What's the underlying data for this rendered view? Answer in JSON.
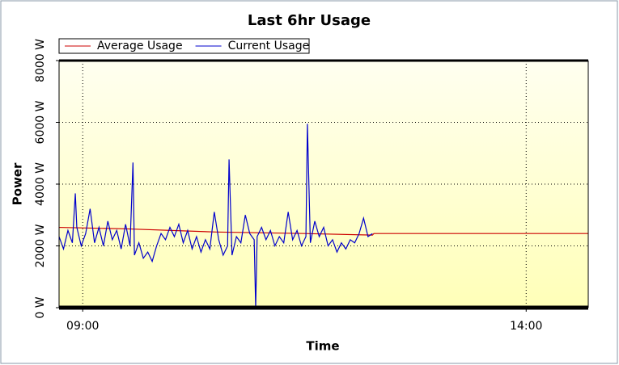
{
  "chart_data": {
    "type": "line",
    "title": "Last 6hr Usage",
    "x_label": "Time",
    "y_label": "Power",
    "xlim": [
      "08:44",
      "14:42"
    ],
    "xticks": [
      "09:00",
      "14:00"
    ],
    "ylim": [
      0,
      8000
    ],
    "yticks": [
      {
        "value": 0,
        "label": "0 W"
      },
      {
        "value": 2000,
        "label": "2000 W"
      },
      {
        "value": 4000,
        "label": "4000 W"
      },
      {
        "value": 6000,
        "label": "6000 W"
      },
      {
        "value": 8000,
        "label": "8000 W"
      }
    ],
    "grid": true,
    "legend": "top-left",
    "series": [
      {
        "name": "Average Usage",
        "color": "#cc0000",
        "x": [
          "08:44",
          "09:30",
          "10:30",
          "11:30",
          "12:16",
          "12:17",
          "14:42"
        ],
        "values": [
          2600,
          2550,
          2450,
          2400,
          2350,
          2400,
          2400
        ]
      },
      {
        "name": "Current Usage",
        "color": "#0000cc",
        "x": [
          "08:44",
          "08:47",
          "08:50",
          "08:53",
          "08:55",
          "08:56",
          "08:59",
          "09:02",
          "09:05",
          "09:08",
          "09:11",
          "09:14",
          "09:17",
          "09:20",
          "09:23",
          "09:26",
          "09:29",
          "09:32",
          "09:34",
          "09:35",
          "09:38",
          "09:41",
          "09:44",
          "09:47",
          "09:50",
          "09:53",
          "09:56",
          "09:59",
          "10:02",
          "10:05",
          "10:08",
          "10:11",
          "10:14",
          "10:17",
          "10:20",
          "10:23",
          "10:26",
          "10:29",
          "10:32",
          "10:35",
          "10:38",
          "10:39",
          "10:41",
          "10:44",
          "10:47",
          "10:50",
          "10:53",
          "10:56",
          "10:57",
          "10:58",
          "11:01",
          "11:04",
          "11:07",
          "11:10",
          "11:13",
          "11:16",
          "11:19",
          "11:22",
          "11:25",
          "11:28",
          "11:31",
          "11:32",
          "11:34",
          "11:37",
          "11:40",
          "11:43",
          "11:46",
          "11:49",
          "11:52",
          "11:55",
          "11:58",
          "12:01",
          "12:04",
          "12:07",
          "12:10",
          "12:13",
          "12:16"
        ],
        "values": [
          2300,
          1900,
          2500,
          2100,
          3700,
          2600,
          2000,
          2400,
          3200,
          2100,
          2600,
          2000,
          2800,
          2200,
          2500,
          1900,
          2700,
          2000,
          4700,
          1700,
          2100,
          1600,
          1800,
          1500,
          2000,
          2400,
          2200,
          2600,
          2300,
          2700,
          2100,
          2500,
          1900,
          2300,
          1800,
          2200,
          1900,
          3100,
          2200,
          1700,
          2000,
          4800,
          1700,
          2300,
          2100,
          3000,
          2400,
          2200,
          0,
          2300,
          2600,
          2200,
          2500,
          2000,
          2300,
          2100,
          3100,
          2200,
          2500,
          2000,
          2300,
          5950,
          2100,
          2800,
          2300,
          2600,
          2000,
          2200,
          1800,
          2100,
          1900,
          2200,
          2100,
          2400,
          2900,
          2300,
          2400
        ]
      }
    ]
  }
}
